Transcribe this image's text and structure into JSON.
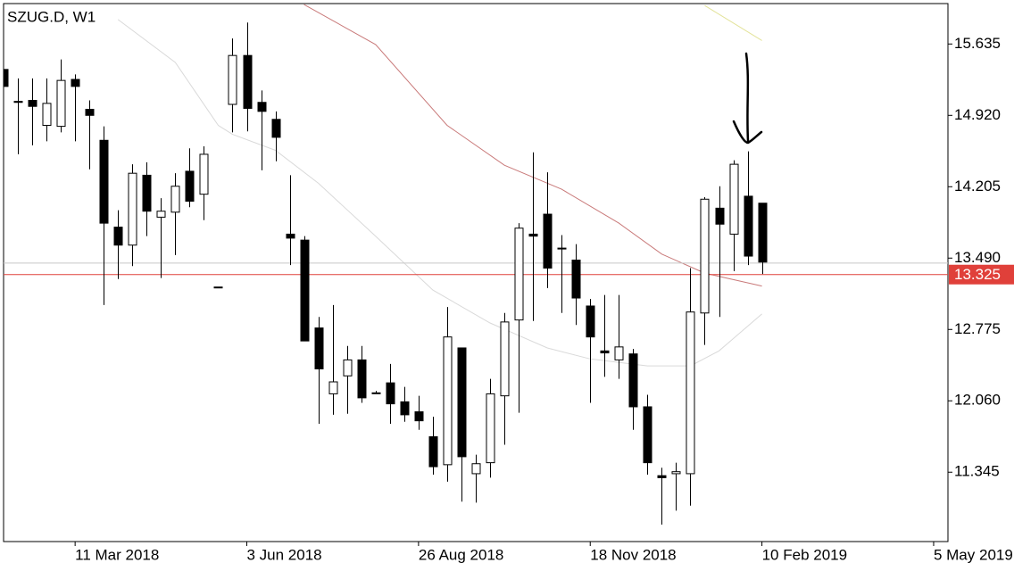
{
  "chart_data": {
    "type": "candlestick",
    "title": "SZUG.D, W1",
    "x": [
      "2018-02-04",
      "2018-02-11",
      "2018-02-18",
      "2018-02-25",
      "2018-03-04",
      "2018-03-11",
      "2018-03-18",
      "2018-03-25",
      "2018-04-01",
      "2018-04-08",
      "2018-04-15",
      "2018-04-22",
      "2018-04-29",
      "2018-05-06",
      "2018-05-13",
      "2018-05-20",
      "2018-05-27",
      "2018-06-03",
      "2018-06-10",
      "2018-06-17",
      "2018-06-24",
      "2018-07-01",
      "2018-07-08",
      "2018-07-15",
      "2018-07-22",
      "2018-07-29",
      "2018-08-05",
      "2018-08-12",
      "2018-08-19",
      "2018-08-26",
      "2018-09-02",
      "2018-09-09",
      "2018-09-16",
      "2018-09-23",
      "2018-09-30",
      "2018-10-07",
      "2018-10-14",
      "2018-10-21",
      "2018-10-28",
      "2018-11-04",
      "2018-11-11",
      "2018-11-18",
      "2018-11-25",
      "2018-12-02",
      "2018-12-09",
      "2018-12-16",
      "2018-12-23",
      "2018-12-30",
      "2019-01-06",
      "2019-01-13",
      "2019-01-20",
      "2019-01-27",
      "2019-02-03",
      "2019-02-10"
    ],
    "open": [
      15.38,
      15.06,
      15.07,
      14.82,
      14.81,
      15.28,
      14.98,
      14.67,
      13.8,
      13.62,
      14.32,
      13.9,
      13.95,
      14.36,
      14.13,
      13.2,
      15.03,
      15.52,
      15.05,
      14.88,
      13.73,
      13.67,
      12.79,
      12.13,
      12.31,
      12.47,
      12.14,
      12.24,
      12.05,
      11.95,
      11.7,
      11.42,
      12.59,
      11.33,
      11.44,
      12.11,
      12.87,
      13.73,
      13.93,
      13.59,
      13.47,
      13.01,
      12.56,
      12.47,
      12.53,
      12.0,
      11.31,
      11.33,
      11.33,
      12.94,
      13.99,
      13.73,
      14.11,
      14.04
    ],
    "high": [
      15.38,
      15.29,
      15.29,
      15.29,
      15.48,
      15.33,
      15.07,
      14.81,
      13.97,
      14.43,
      14.45,
      14.09,
      14.34,
      14.59,
      14.61,
      13.2,
      15.69,
      15.85,
      15.17,
      14.96,
      14.32,
      13.71,
      12.9,
      13.02,
      12.61,
      12.61,
      12.16,
      12.43,
      12.2,
      12.11,
      11.9,
      13.0,
      12.59,
      11.52,
      12.28,
      12.94,
      13.84,
      14.55,
      14.35,
      13.72,
      13.63,
      13.08,
      13.12,
      13.12,
      12.58,
      12.12,
      11.39,
      11.44,
      13.39,
      14.1,
      14.21,
      14.47,
      14.56,
      14.04
    ],
    "low": [
      15.21,
      14.53,
      14.62,
      14.66,
      14.75,
      14.66,
      14.38,
      13.02,
      13.28,
      13.41,
      13.71,
      13.29,
      13.52,
      14.0,
      13.87,
      13.2,
      14.75,
      14.76,
      14.37,
      14.46,
      13.42,
      12.66,
      11.83,
      11.92,
      11.93,
      12.04,
      12.13,
      11.83,
      11.85,
      11.77,
      11.32,
      11.25,
      11.05,
      11.04,
      11.29,
      11.62,
      11.94,
      12.86,
      13.19,
      12.94,
      12.82,
      12.04,
      12.3,
      12.28,
      11.77,
      11.32,
      10.82,
      10.96,
      11.01,
      12.62,
      12.9,
      13.36,
      13.42,
      13.33
    ],
    "close": [
      15.21,
      15.05,
      15.01,
      15.04,
      15.27,
      15.21,
      14.92,
      13.84,
      13.62,
      14.34,
      13.96,
      13.96,
      14.21,
      14.06,
      14.53,
      13.2,
      15.52,
      14.99,
      14.96,
      14.7,
      13.69,
      12.66,
      12.38,
      12.25,
      12.47,
      12.09,
      12.14,
      12.03,
      11.92,
      11.86,
      11.4,
      12.7,
      11.5,
      11.43,
      12.13,
      12.85,
      13.79,
      13.71,
      13.39,
      13.59,
      13.09,
      12.7,
      12.54,
      12.6,
      12.0,
      11.44,
      11.29,
      11.35,
      12.95,
      14.08,
      13.83,
      14.43,
      13.51,
      13.45
    ],
    "up_color": "#ffffff",
    "down_color": "#000000",
    "lines": [
      {
        "color": "#d9d9d9",
        "x": [
          "2018-04-01",
          "2018-04-29",
          "2018-05-20",
          "2018-05-27",
          "2018-06-17",
          "2018-07-08",
          "2018-08-05",
          "2018-09-02",
          "2018-09-30",
          "2018-10-28",
          "2018-11-18",
          "2018-12-16",
          "2019-01-06",
          "2019-01-20",
          "2019-02-10"
        ],
        "values": [
          15.88,
          15.45,
          14.82,
          14.73,
          14.57,
          14.24,
          13.71,
          13.17,
          12.84,
          12.59,
          12.48,
          12.41,
          12.41,
          12.56,
          12.93
        ]
      },
      {
        "color": "#c97a7a",
        "x": [
          "2018-07-01",
          "2018-08-05",
          "2018-09-09",
          "2018-10-07",
          "2018-11-04",
          "2018-12-02",
          "2018-12-23",
          "2019-01-13",
          "2019-02-10"
        ],
        "values": [
          16.03,
          15.63,
          14.82,
          14.42,
          14.18,
          13.84,
          13.53,
          13.34,
          13.21
        ]
      },
      {
        "color": "#e3e39a",
        "x": [
          "2019-01-13",
          "2019-02-10"
        ],
        "values": [
          16.02,
          15.67
        ]
      }
    ],
    "price_lines": [
      {
        "value": 13.44,
        "color": "#c8c8c8"
      },
      {
        "value": 13.325,
        "color": "#e0403a"
      }
    ],
    "xlim": [
      "2018-02-04",
      "2019-05-12"
    ],
    "xticks": [
      {
        "value": "2018-03-11",
        "label": "11 Mar 2018"
      },
      {
        "value": "2018-06-03",
        "label": "3 Jun 2018"
      },
      {
        "value": "2018-08-26",
        "label": "26 Aug 2018"
      },
      {
        "value": "2018-11-18",
        "label": "18 Nov 2018"
      },
      {
        "value": "2019-02-10",
        "label": "10 Feb 2019"
      },
      {
        "value": "2019-05-05",
        "label": "5 May 2019"
      }
    ],
    "ylim": [
      10.65,
      16.04
    ],
    "yticks": [
      15.635,
      {
        "value": 14.92,
        "label": "14.920"
      },
      14.205,
      {
        "value": 13.49,
        "label": "13.490"
      },
      12.775,
      {
        "value": 12.06,
        "label": "12.060"
      },
      11.345
    ]
  }
}
